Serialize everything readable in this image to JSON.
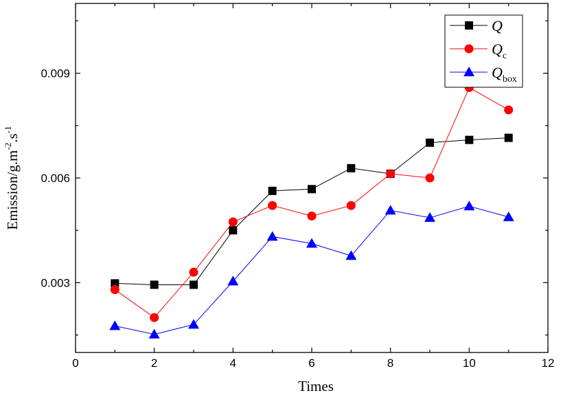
{
  "chart_data": {
    "type": "line",
    "title": "",
    "xlabel": "Times",
    "ylabel_parts": [
      "Emission/g.m",
      "-2",
      ".s",
      "-1"
    ],
    "xlim": [
      0,
      12
    ],
    "ylim": [
      0.001,
      0.011
    ],
    "xticks": [
      0,
      2,
      4,
      6,
      8,
      10,
      12
    ],
    "xtick_labels": [
      "0",
      "2",
      "4",
      "6",
      "8",
      "10",
      "12"
    ],
    "yticks": [
      0.003,
      0.006,
      0.009
    ],
    "ytick_labels": [
      "0.003",
      "0.006",
      "0.009"
    ],
    "grid": false,
    "legend_placement": "top-right",
    "x": [
      1,
      2,
      3,
      4,
      5,
      6,
      7,
      8,
      9,
      10,
      11
    ],
    "series": [
      {
        "name": "Q",
        "sub": "",
        "color": "#000000",
        "marker": "square",
        "values": [
          0.00298,
          0.00294,
          0.00294,
          0.0045,
          0.00563,
          0.00568,
          0.00628,
          0.00612,
          0.00701,
          0.00709,
          0.00715
        ]
      },
      {
        "name": "Q",
        "sub": "c",
        "color": "#ff0000",
        "marker": "circle",
        "values": [
          0.0028,
          0.002,
          0.0033,
          0.00474,
          0.00521,
          0.00491,
          0.00521,
          0.00612,
          0.006,
          0.00859,
          0.00795
        ]
      },
      {
        "name": "Q",
        "sub": "box",
        "color": "#0000ff",
        "marker": "triangle",
        "values": [
          0.00176,
          0.00152,
          0.0018,
          0.00304,
          0.00432,
          0.00412,
          0.00377,
          0.00507,
          0.00486,
          0.00519,
          0.00488
        ]
      }
    ]
  }
}
